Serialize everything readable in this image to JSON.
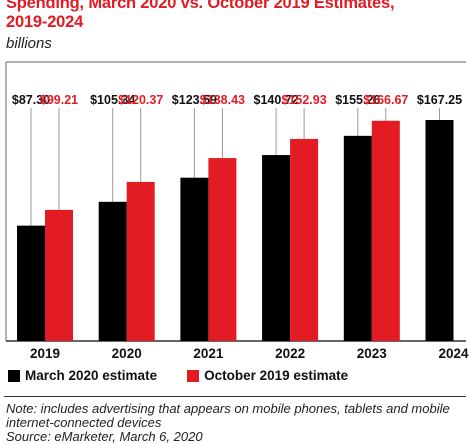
{
  "header": {
    "title_line1": "Spending, March 2020 vs. October 2019 Estimates,",
    "title_line2": "2019-2024",
    "subtitle": "billions"
  },
  "legend": {
    "march_label": "March 2020 estimate",
    "october_label": "October 2019 estimate"
  },
  "footer": {
    "note": "Note: includes advertising that appears on mobile phones, tablets and mobile internet-connected devices",
    "source": "Source: eMarketer, March 6, 2020"
  },
  "colors": {
    "march": "#000000",
    "october": "#e31b23",
    "label_red": "#e31b23",
    "leader_line": "#999999"
  },
  "chart_data": {
    "type": "bar",
    "title": "Spending, March 2020 vs. October 2019 Estimates, 2019-2024",
    "subtitle": "billions",
    "categories": [
      "2019",
      "2020",
      "2021",
      "2022",
      "2023",
      "2024"
    ],
    "series": [
      {
        "name": "March 2020 estimate",
        "color": "#000000",
        "values": [
          87.3,
          105.34,
          123.59,
          140.72,
          155.26,
          167.25
        ],
        "labels": [
          "$87.30",
          "$105.34",
          "$123.59",
          "$140.72",
          "$155.26",
          "$167.25"
        ]
      },
      {
        "name": "October 2019 estimate",
        "color": "#e31b23",
        "values": [
          99.21,
          120.37,
          138.43,
          152.93,
          166.67,
          null
        ],
        "labels": [
          "$99.21",
          "$120.37",
          "$138.43",
          "$152.93",
          "$166.67",
          ""
        ]
      }
    ],
    "ylim": [
      0,
      167.25
    ],
    "grid": false,
    "legend_position": "bottom"
  }
}
